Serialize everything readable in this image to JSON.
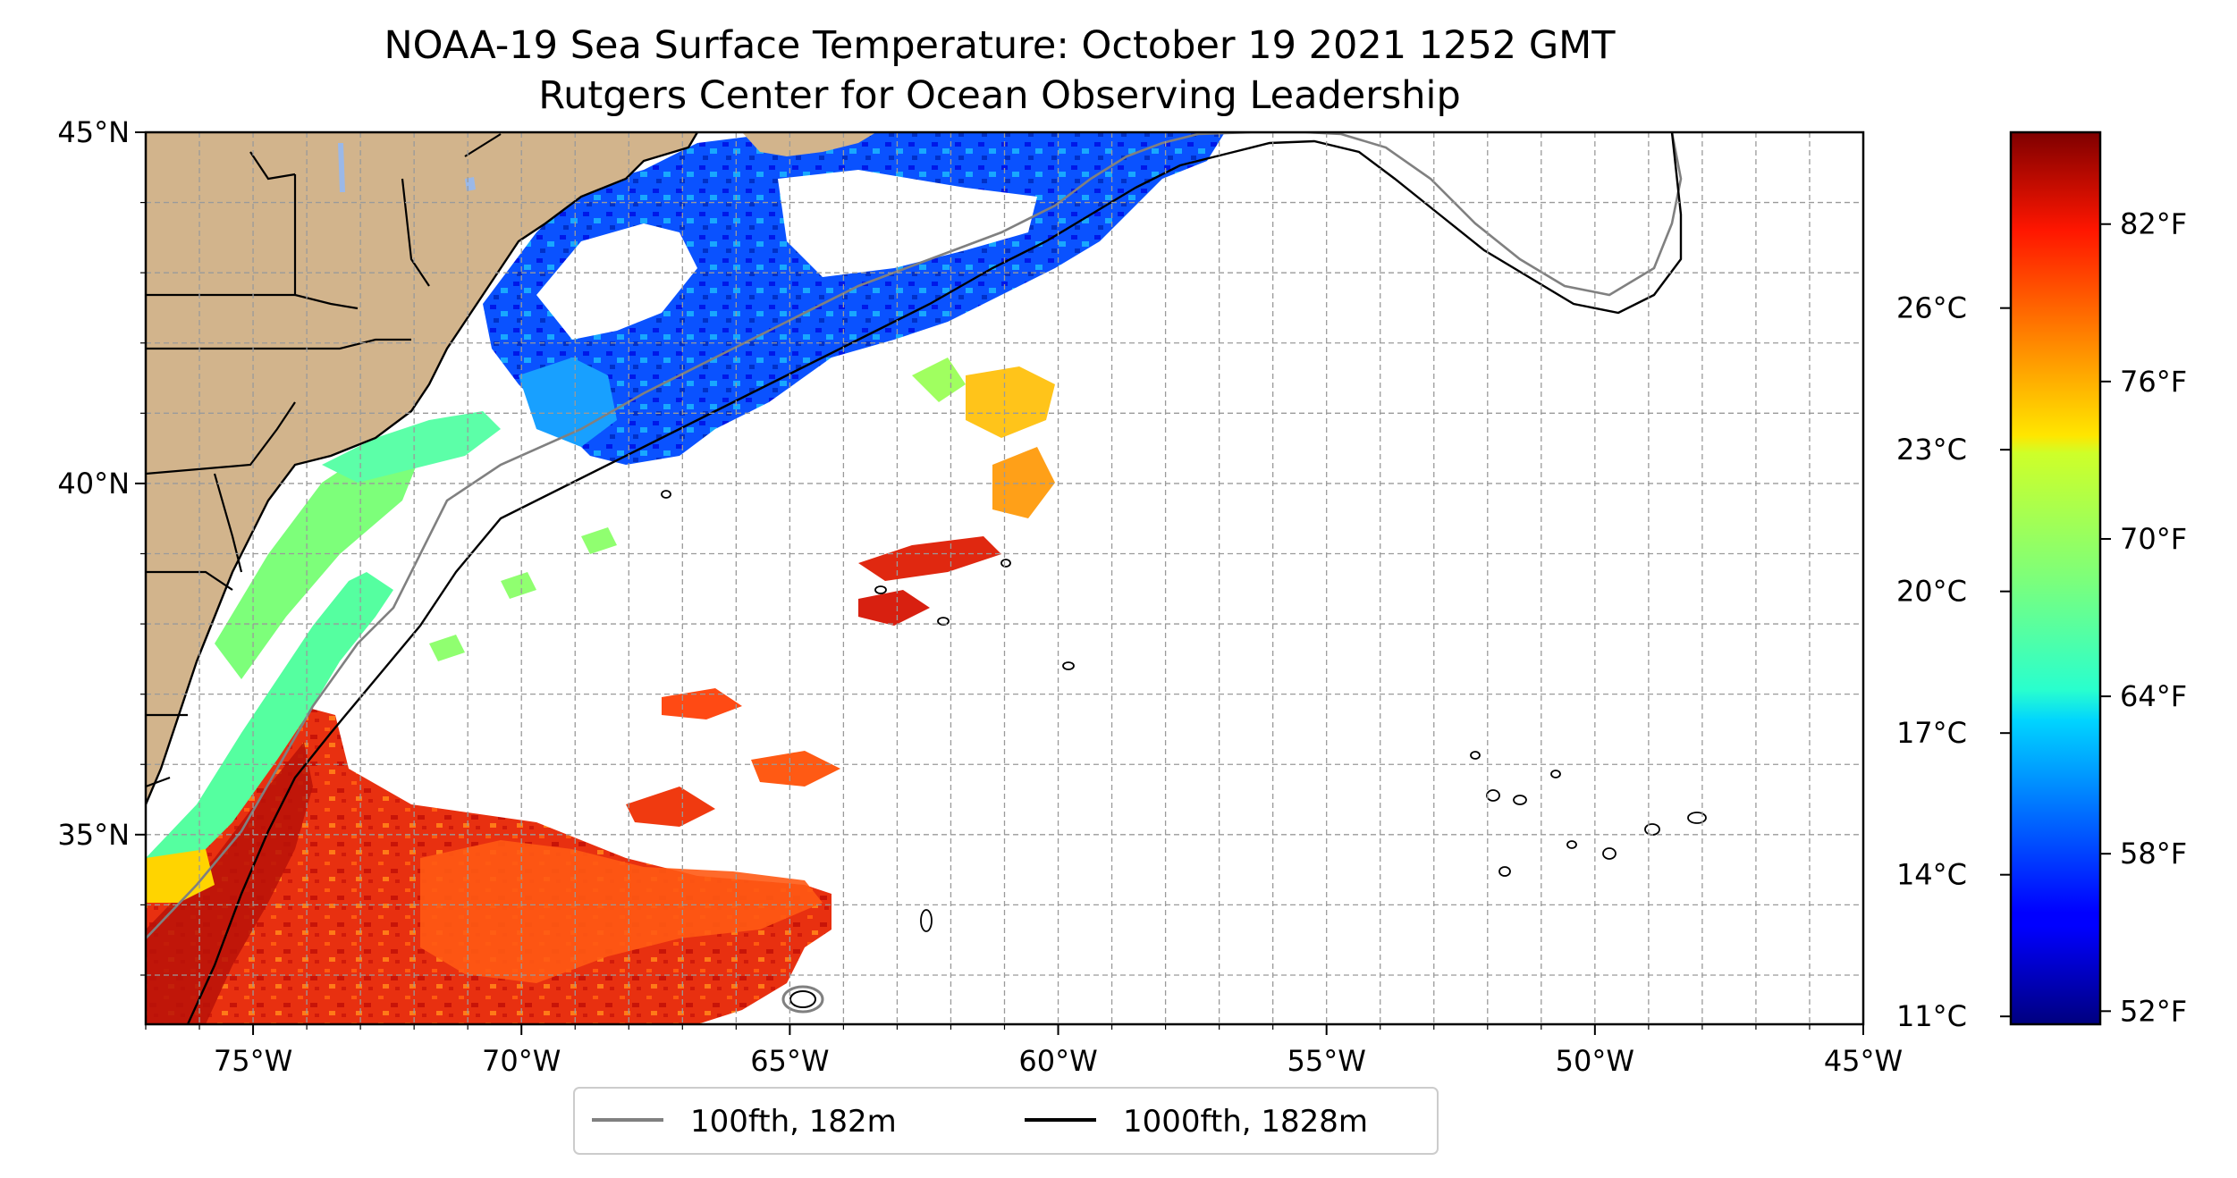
{
  "title": {
    "line1": "NOAA-19 Sea Surface Temperature: October 19 2021 1252 GMT",
    "line2": "Rutgers Center for Ocean Observing Leadership"
  },
  "map": {
    "lon_range": [
      -77,
      -45
    ],
    "lat_range": [
      32.3,
      45
    ],
    "x_ticks": [
      {
        "lon": -75,
        "label": "75°W"
      },
      {
        "lon": -70,
        "label": "70°W"
      },
      {
        "lon": -65,
        "label": "65°W"
      },
      {
        "lon": -60,
        "label": "60°W"
      },
      {
        "lon": -55,
        "label": "55°W"
      },
      {
        "lon": -50,
        "label": "50°W"
      },
      {
        "lon": -45,
        "label": "45°W"
      }
    ],
    "y_ticks": [
      {
        "lat": 45,
        "label": "45°N"
      },
      {
        "lat": 40,
        "label": "40°N"
      },
      {
        "lat": 35,
        "label": "35°N"
      }
    ],
    "gridlines": true,
    "land_color": "#d2b48c"
  },
  "legend": {
    "position": "bottom-center",
    "items": [
      {
        "label": "100fth, 182m",
        "color": "#808080"
      },
      {
        "label": "1000fth, 1828m",
        "color": "#000000"
      }
    ]
  },
  "colorbar": {
    "colormap": "jet",
    "range_f": [
      51.5,
      85.5
    ],
    "fahrenheit_ticks": [
      {
        "value": 82,
        "label": "82°F"
      },
      {
        "value": 76,
        "label": "76°F"
      },
      {
        "value": 70,
        "label": "70°F"
      },
      {
        "value": 64,
        "label": "64°F"
      },
      {
        "value": 58,
        "label": "58°F"
      },
      {
        "value": 52,
        "label": "52°F"
      }
    ],
    "celsius_ticks": [
      {
        "value": 26,
        "label": "26°C"
      },
      {
        "value": 23,
        "label": "23°C"
      },
      {
        "value": 20,
        "label": "20°C"
      },
      {
        "value": 17,
        "label": "17°C"
      },
      {
        "value": 14,
        "label": "14°C"
      },
      {
        "value": 11,
        "label": "11°C"
      }
    ]
  }
}
